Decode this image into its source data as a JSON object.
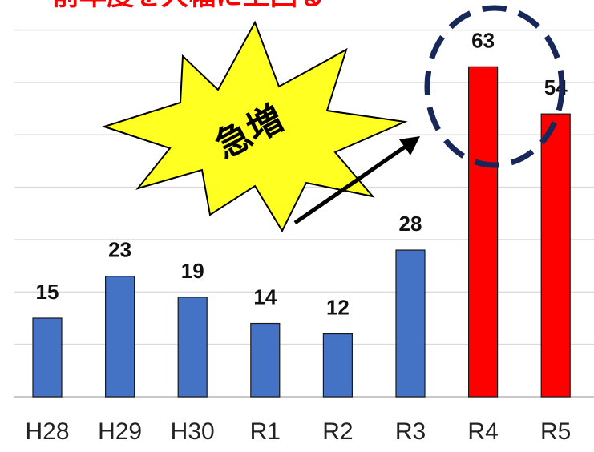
{
  "title": "前年度を大幅に上回る",
  "chart_data": {
    "type": "bar",
    "title": "",
    "xlabel": "",
    "ylabel": "",
    "categories": [
      "H28",
      "H29",
      "H30",
      "R1",
      "R2",
      "R3",
      "R4",
      "R5"
    ],
    "values": [
      15,
      23,
      19,
      14,
      12,
      28,
      63,
      54
    ],
    "ylim": [
      0,
      70
    ],
    "grid": true,
    "legend": "none",
    "colors": [
      "#4472c4",
      "#4472c4",
      "#4472c4",
      "#4472c4",
      "#4472c4",
      "#4472c4",
      "#ff0000",
      "#ff0000"
    ]
  },
  "annotation": {
    "burst_text": "急増",
    "burst_fill": "#ffff22",
    "circle_color": "#17275a",
    "arrow_color": "#000000"
  }
}
